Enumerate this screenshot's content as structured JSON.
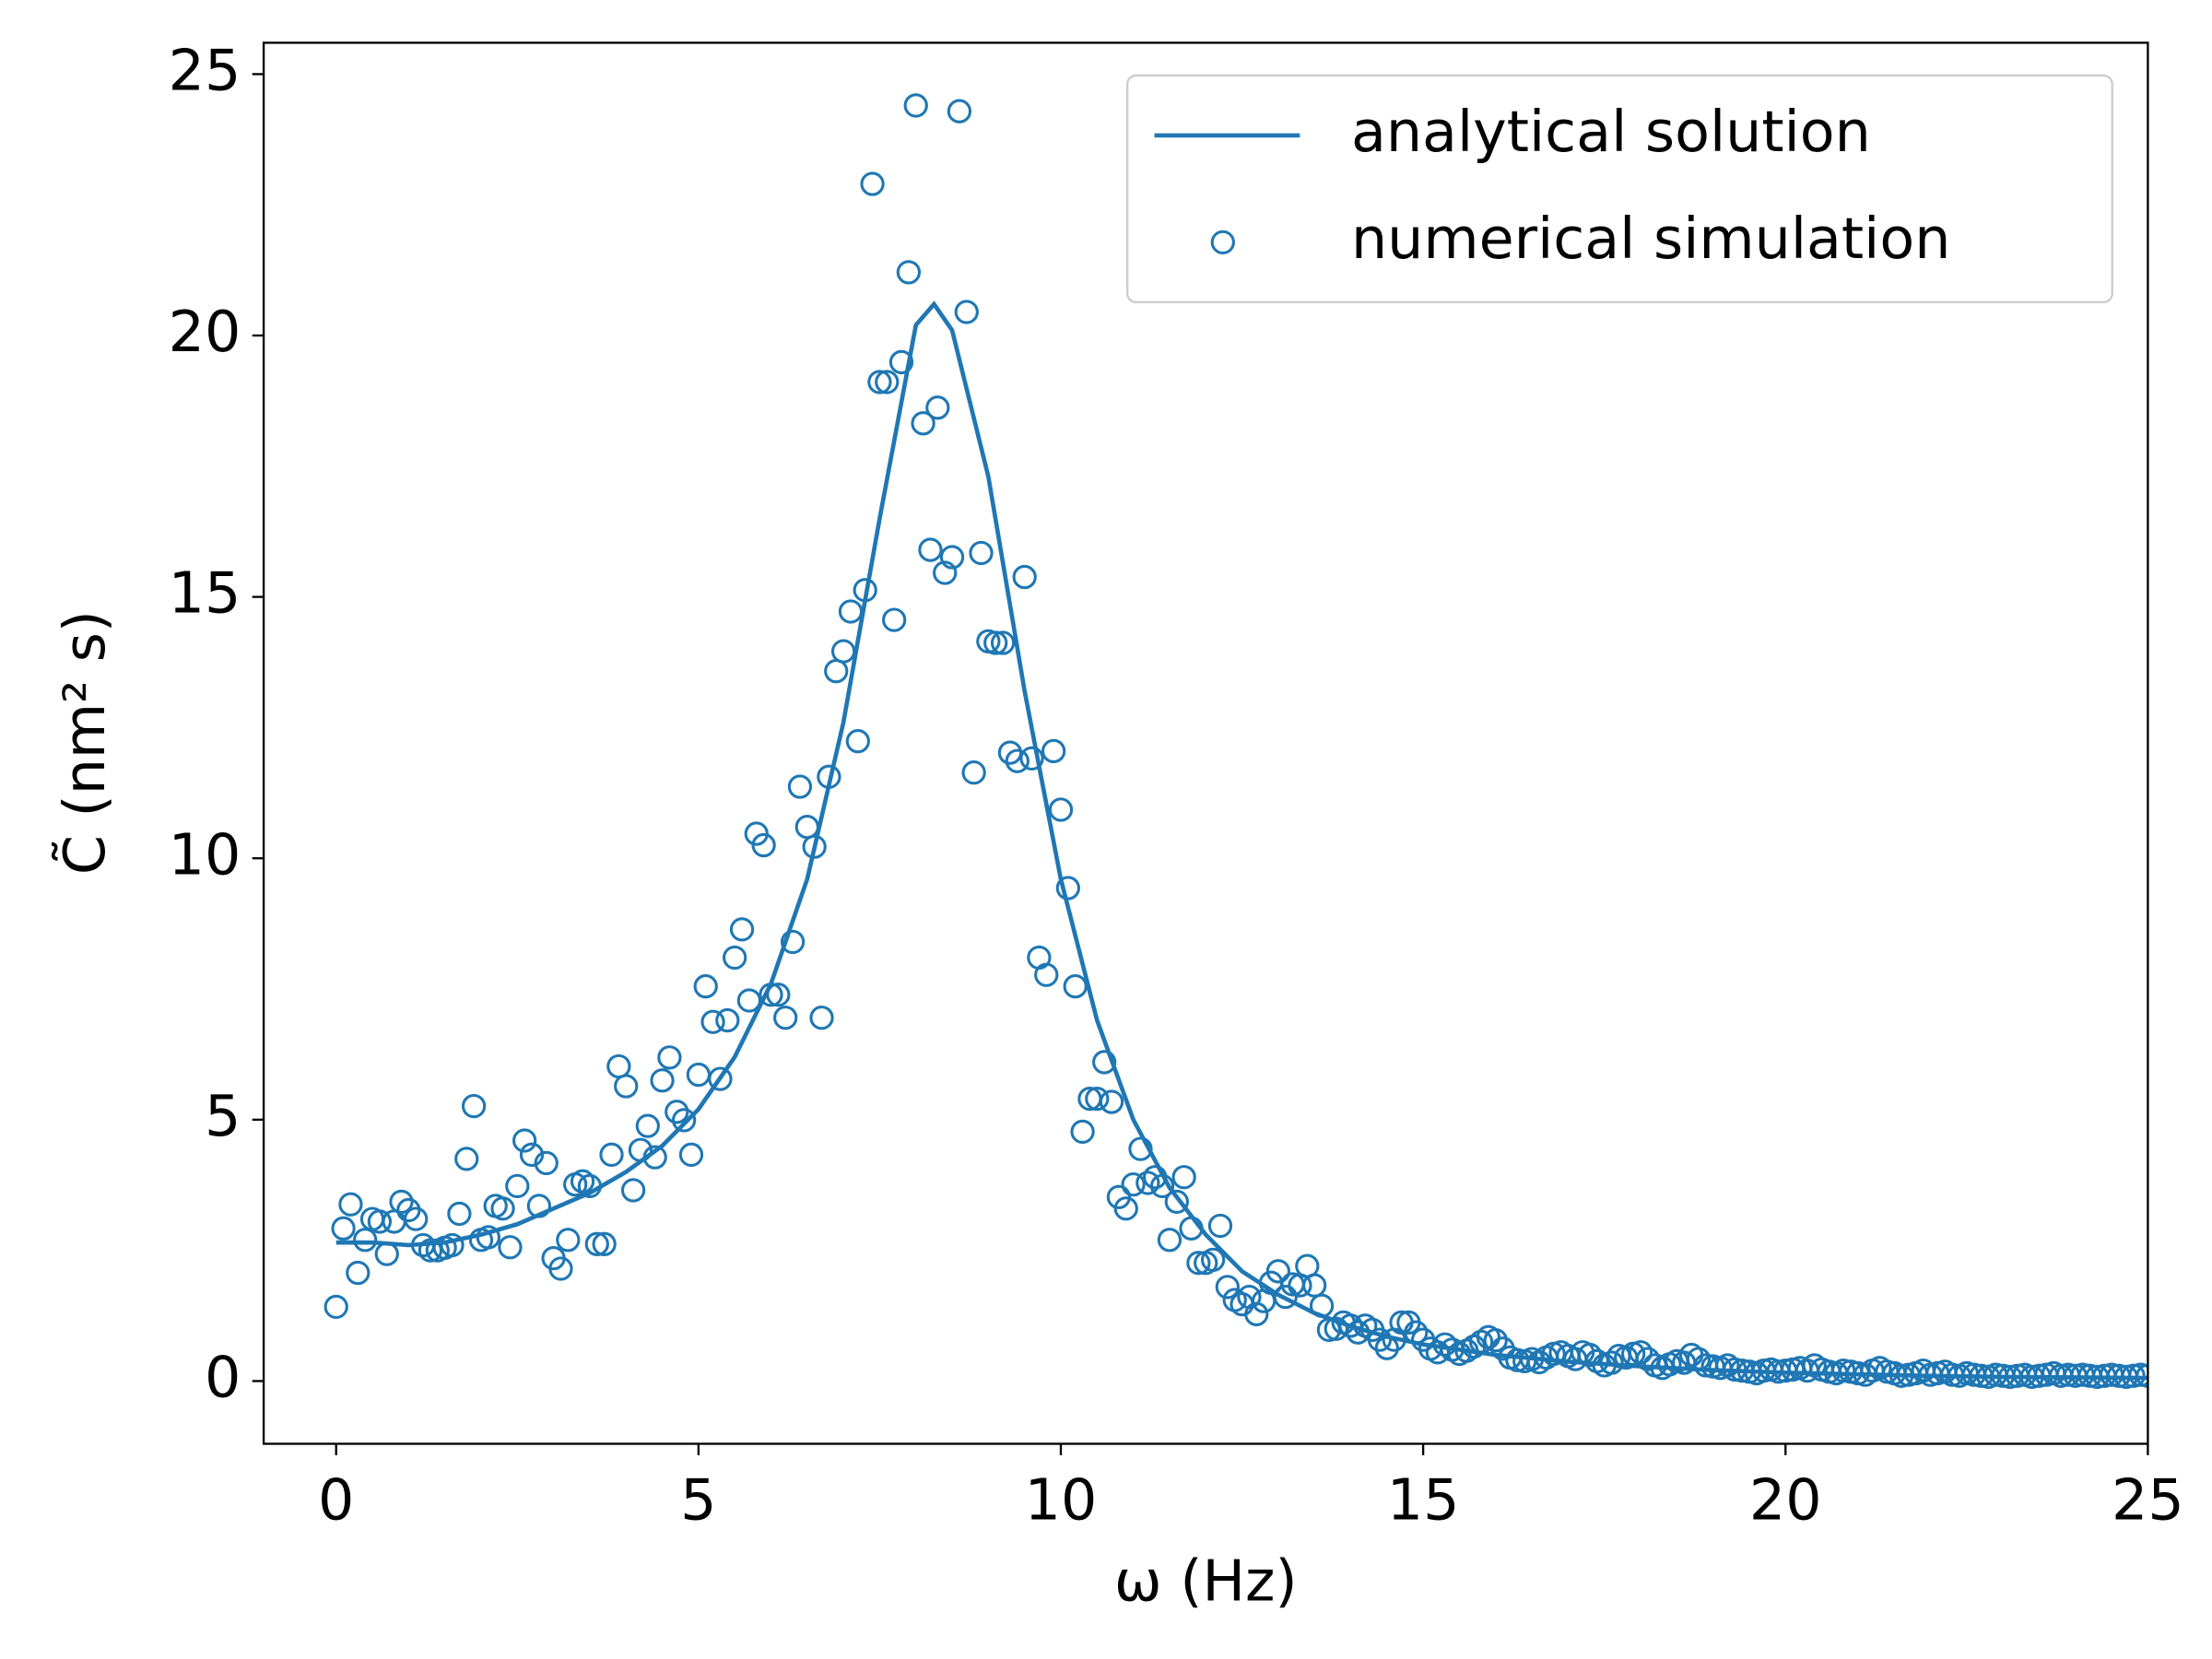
{
  "chart_data": {
    "type": "line-scatter",
    "xlabel": "ω (Hz)",
    "ylabel": "C̃ (nm² s)",
    "xlim": [
      -1,
      25
    ],
    "ylim": [
      -1.2,
      25.6
    ],
    "xticks": [
      0,
      5,
      10,
      15,
      20,
      25
    ],
    "yticks": [
      0,
      5,
      10,
      15,
      20,
      25
    ],
    "grid": false,
    "legend_position": "upper right",
    "series": [
      {
        "name": "analytical solution",
        "kind": "line",
        "color": "#1f77b4",
        "x": [
          0,
          0.5,
          1,
          1.5,
          2,
          2.5,
          3,
          3.5,
          4,
          4.5,
          5,
          5.5,
          6,
          6.5,
          7,
          7.5,
          8,
          8.25,
          8.5,
          9,
          9.5,
          10,
          10.5,
          11,
          11.5,
          12,
          12.5,
          13,
          13.5,
          14,
          14.5,
          15,
          16,
          17,
          18,
          19,
          20,
          21,
          22,
          23,
          24,
          25
        ],
        "values": [
          2.65,
          2.65,
          2.6,
          2.65,
          2.8,
          3.0,
          3.3,
          3.6,
          4.0,
          4.5,
          5.2,
          6.2,
          7.6,
          9.6,
          12.6,
          16.5,
          20.2,
          20.6,
          20.1,
          17.3,
          13.2,
          9.6,
          6.9,
          5.0,
          3.7,
          2.8,
          2.1,
          1.65,
          1.3,
          1.05,
          0.85,
          0.7,
          0.5,
          0.37,
          0.28,
          0.21,
          0.16,
          0.13,
          0.1,
          0.08,
          0.07,
          0.06
        ]
      },
      {
        "name": "numerical simulation",
        "kind": "scatter",
        "color": "#1f77b4",
        "x": [
          0,
          0.1,
          0.2,
          0.3,
          0.4,
          0.5,
          0.6,
          0.7,
          0.8,
          0.9,
          1,
          1.1,
          1.2,
          1.3,
          1.4,
          1.5,
          1.6,
          1.7,
          1.8,
          1.9,
          2,
          2.1,
          2.2,
          2.3,
          2.4,
          2.5,
          2.6,
          2.7,
          2.8,
          2.9,
          3,
          3.1,
          3.2,
          3.3,
          3.4,
          3.5,
          3.6,
          3.7,
          3.8,
          3.9,
          4,
          4.1,
          4.2,
          4.3,
          4.4,
          4.5,
          4.6,
          4.7,
          4.8,
          4.9,
          5,
          5.1,
          5.2,
          5.3,
          5.4,
          5.5,
          5.6,
          5.7,
          5.8,
          5.9,
          6,
          6.1,
          6.2,
          6.3,
          6.4,
          6.5,
          6.6,
          6.7,
          6.8,
          6.9,
          7,
          7.1,
          7.2,
          7.3,
          7.4,
          7.5,
          7.6,
          7.7,
          7.8,
          7.9,
          8,
          8.1,
          8.2,
          8.3,
          8.4,
          8.5,
          8.6,
          8.7,
          8.8,
          8.9,
          9,
          9.1,
          9.2,
          9.3,
          9.4,
          9.5,
          9.6,
          9.7,
          9.8,
          9.9,
          10,
          10.1,
          10.2,
          10.3,
          10.4,
          10.5,
          10.6,
          10.7,
          10.8,
          10.9,
          11,
          11.1,
          11.2,
          11.3,
          11.4,
          11.5,
          11.6,
          11.7,
          11.8,
          11.9,
          12,
          12.1,
          12.2,
          12.3,
          12.4,
          12.5,
          12.6,
          12.7,
          12.8,
          12.9,
          13,
          13.1,
          13.2,
          13.3,
          13.4,
          13.5,
          13.6,
          13.7,
          13.8,
          13.9,
          14,
          14.1,
          14.2,
          14.3,
          14.4,
          14.5,
          14.6,
          14.7,
          14.8,
          14.9,
          15,
          15.1,
          15.2,
          15.3,
          15.4,
          15.5,
          15.6,
          15.7,
          15.8,
          15.9,
          16,
          16.1,
          16.2,
          16.3,
          16.4,
          16.5,
          16.6,
          16.7,
          16.8,
          16.9,
          17,
          17.1,
          17.2,
          17.3,
          17.4,
          17.5,
          17.6,
          17.7,
          17.8,
          17.9,
          18,
          18.1,
          18.2,
          18.3,
          18.4,
          18.5,
          18.6,
          18.7,
          18.8,
          18.9,
          19,
          19.1,
          19.2,
          19.3,
          19.4,
          19.5,
          19.6,
          19.7,
          19.8,
          19.9,
          20,
          20.1,
          20.2,
          20.3,
          20.4,
          20.5,
          20.6,
          20.7,
          20.8,
          20.9,
          21,
          21.1,
          21.2,
          21.3,
          21.4,
          21.5,
          21.6,
          21.7,
          21.8,
          21.9,
          22,
          22.1,
          22.2,
          22.3,
          22.4,
          22.5,
          22.6,
          22.7,
          22.8,
          22.9,
          23,
          23.1,
          23.2,
          23.3,
          23.4,
          23.5,
          23.6,
          23.7,
          23.8,
          23.9,
          24,
          24.1,
          24.2,
          24.3,
          24.4,
          24.5,
          24.6,
          24.7,
          24.8,
          24.9,
          25
        ],
        "values": [
          1.42,
          2.92,
          3.38,
          2.07,
          2.7,
          3.1,
          3.05,
          2.43,
          3.05,
          3.43,
          3.27,
          3.1,
          2.6,
          2.5,
          2.5,
          2.55,
          2.6,
          3.2,
          4.25,
          5.26,
          2.7,
          2.75,
          3.35,
          3.3,
          2.56,
          3.73,
          4.6,
          4.33,
          3.35,
          4.17,
          2.35,
          2.15,
          2.7,
          3.76,
          3.82,
          3.73,
          2.62,
          2.62,
          4.33,
          6.02,
          5.64,
          3.65,
          4.42,
          4.88,
          4.28,
          5.75,
          6.19,
          5.15,
          4.99,
          4.33,
          5.86,
          7.55,
          6.87,
          5.78,
          6.9,
          8.1,
          8.64,
          7.28,
          10.47,
          10.25,
          7.39,
          7.39,
          6.95,
          8.4,
          11.37,
          10.6,
          10.22,
          6.95,
          11.56,
          13.58,
          13.96,
          14.72,
          12.24,
          15.13,
          22.9,
          19.11,
          19.11,
          14.56,
          19.49,
          21.21,
          24.4,
          18.32,
          15.9,
          18.62,
          15.46,
          15.76,
          24.29,
          20.45,
          11.64,
          15.84,
          14.15,
          14.12,
          14.12,
          12.02,
          11.86,
          15.38,
          11.91,
          8.1,
          7.77,
          12.05,
          10.93,
          9.43,
          7.55,
          4.77,
          5.4,
          5.4,
          6.1,
          5.34,
          3.52,
          3.3,
          3.76,
          4.44,
          3.79,
          3.9,
          3.73,
          2.7,
          3.43,
          3.9,
          2.92,
          2.26,
          2.26,
          2.32,
          2.97,
          1.8,
          1.55,
          1.47,
          1.61,
          1.28,
          1.53,
          1.88,
          2.1,
          1.61,
          1.85,
          1.83,
          2.2,
          1.83,
          1.44,
          0.98,
          1.0,
          1.12,
          1.06,
          0.93,
          1.06,
          0.98,
          0.79,
          0.63,
          0.79,
          1.12,
          1.12,
          0.93,
          0.79,
          0.62,
          0.55,
          0.7,
          0.6,
          0.52,
          0.58,
          0.66,
          0.75,
          0.84,
          0.78,
          0.62,
          0.45,
          0.4,
          0.38,
          0.42,
          0.36,
          0.45,
          0.52,
          0.55,
          0.48,
          0.42,
          0.55,
          0.5,
          0.38,
          0.3,
          0.35,
          0.48,
          0.45,
          0.52,
          0.55,
          0.42,
          0.3,
          0.25,
          0.32,
          0.38,
          0.35,
          0.5,
          0.42,
          0.3,
          0.28,
          0.25,
          0.3,
          0.22,
          0.2,
          0.18,
          0.15,
          0.2,
          0.22,
          0.18,
          0.2,
          0.22,
          0.25,
          0.2,
          0.3,
          0.22,
          0.18,
          0.15,
          0.2,
          0.18,
          0.15,
          0.12,
          0.2,
          0.25,
          0.18,
          0.15,
          0.1,
          0.12,
          0.15,
          0.2,
          0.12,
          0.15,
          0.18,
          0.12,
          0.1,
          0.15,
          0.12,
          0.1,
          0.08,
          0.12,
          0.1,
          0.08,
          0.1,
          0.12,
          0.08,
          0.1,
          0.12,
          0.15,
          0.1,
          0.12,
          0.1,
          0.12,
          0.1,
          0.08,
          0.1,
          0.12,
          0.1,
          0.08,
          0.1,
          0.12,
          0.1
        ]
      }
    ]
  }
}
